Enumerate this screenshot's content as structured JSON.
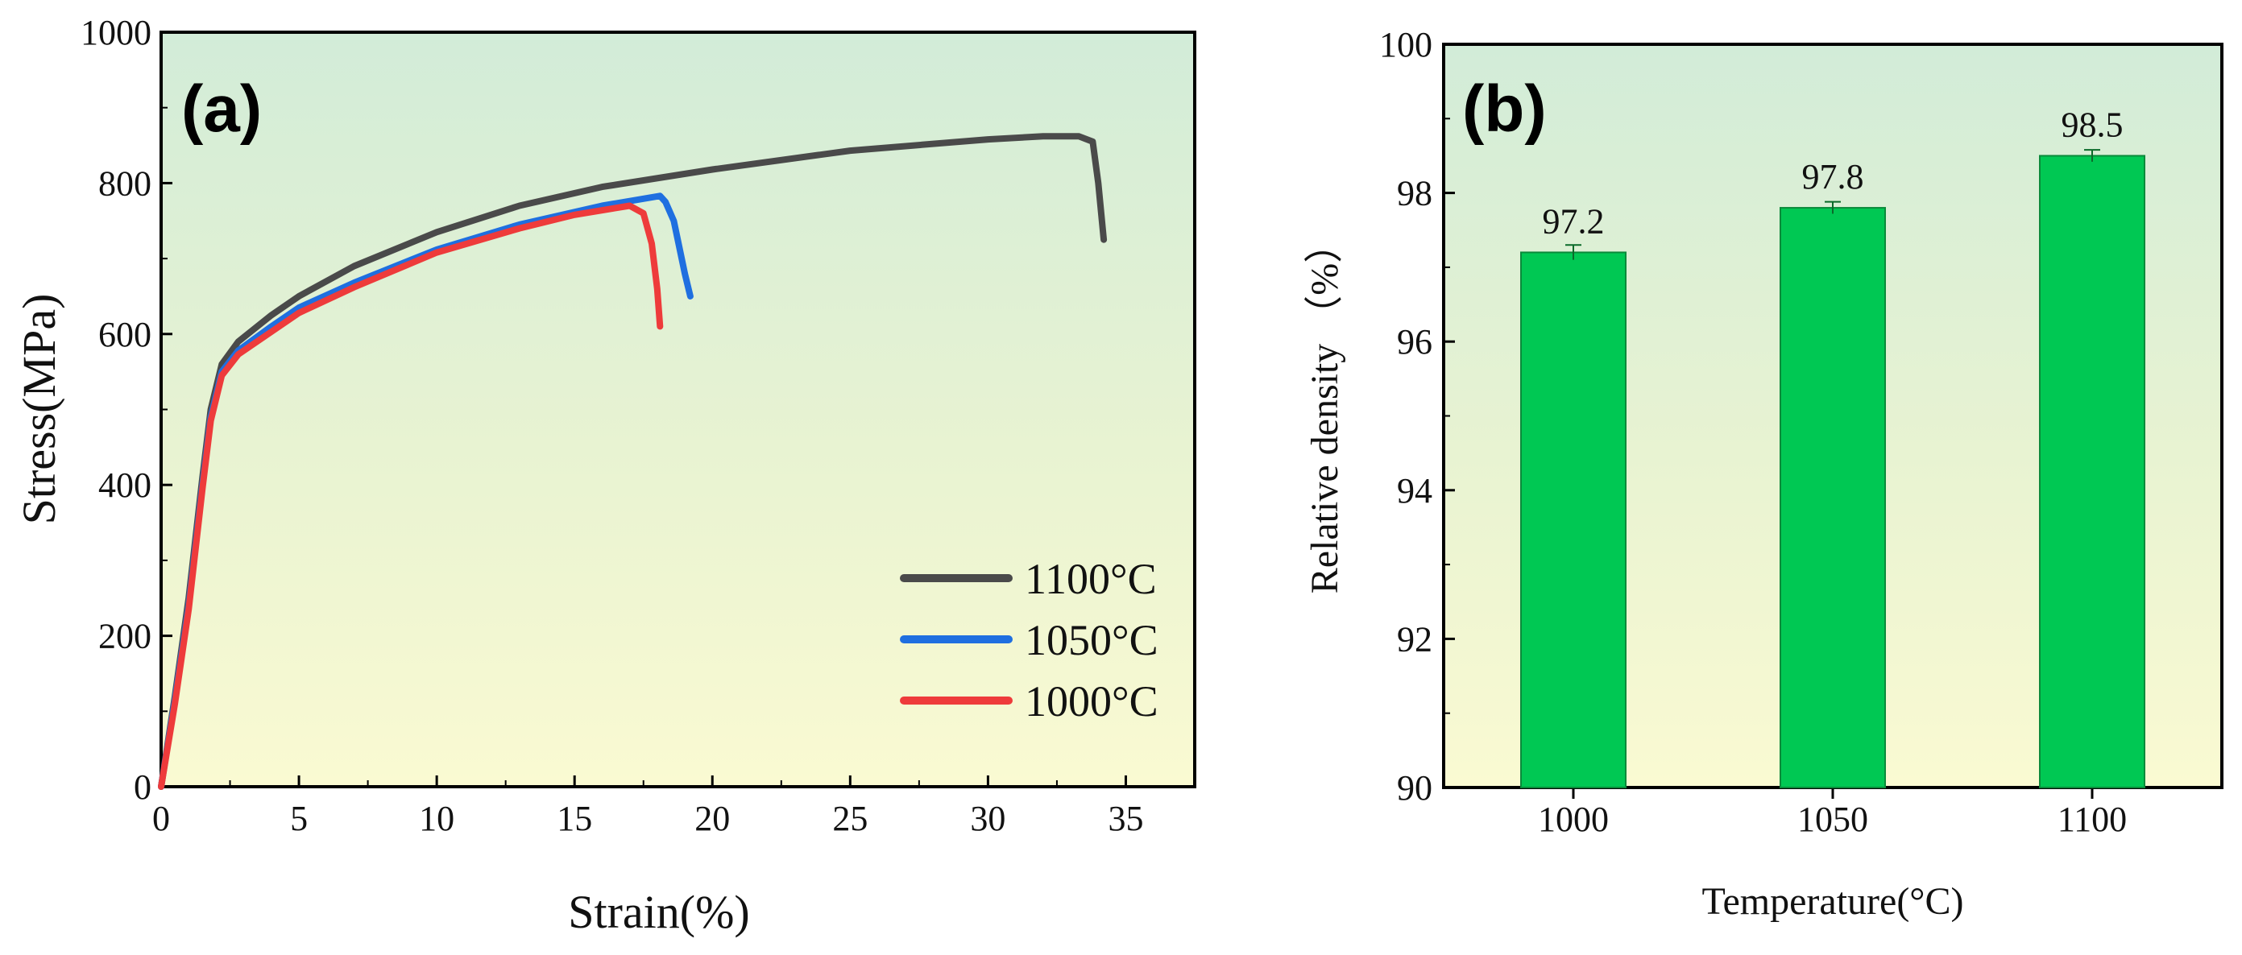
{
  "chart_data": [
    {
      "panel": "(a)",
      "type": "line",
      "xlabel": "Strain(%)",
      "ylabel": "Stress(MPa)",
      "xlim": [
        0,
        37.5
      ],
      "ylim": [
        0,
        1000
      ],
      "xticks": [
        0,
        5,
        10,
        15,
        20,
        25,
        30,
        35
      ],
      "yticks": [
        0,
        200,
        400,
        600,
        800,
        1000
      ],
      "legend_position": "lower-right",
      "series": [
        {
          "name": "1100°C",
          "color": "#4a4a4a",
          "points": [
            [
              0,
              0
            ],
            [
              0.5,
              120
            ],
            [
              1,
              250
            ],
            [
              1.5,
              410
            ],
            [
              1.8,
              500
            ],
            [
              2.2,
              560
            ],
            [
              2.8,
              590
            ],
            [
              4,
              625
            ],
            [
              5,
              650
            ],
            [
              7,
              690
            ],
            [
              10,
              735
            ],
            [
              13,
              770
            ],
            [
              16,
              795
            ],
            [
              20,
              818
            ],
            [
              25,
              843
            ],
            [
              30,
              858
            ],
            [
              32,
              862
            ],
            [
              33.3,
              862
            ],
            [
              33.8,
              855
            ],
            [
              34,
              800
            ],
            [
              34.2,
              725
            ]
          ]
        },
        {
          "name": "1050°C",
          "color": "#1f6fe0",
          "points": [
            [
              0,
              0
            ],
            [
              0.5,
              115
            ],
            [
              1,
              240
            ],
            [
              1.5,
              400
            ],
            [
              1.8,
              490
            ],
            [
              2.2,
              550
            ],
            [
              2.8,
              578
            ],
            [
              4,
              610
            ],
            [
              5,
              635
            ],
            [
              7,
              668
            ],
            [
              10,
              712
            ],
            [
              13,
              745
            ],
            [
              16,
              770
            ],
            [
              18.1,
              783
            ],
            [
              18.3,
              775
            ],
            [
              18.6,
              750
            ],
            [
              19,
              680
            ],
            [
              19.2,
              650
            ]
          ]
        },
        {
          "name": "1000°C",
          "color": "#ee3b3b",
          "points": [
            [
              0,
              0
            ],
            [
              0.5,
              110
            ],
            [
              1,
              235
            ],
            [
              1.5,
              395
            ],
            [
              1.8,
              485
            ],
            [
              2.2,
              545
            ],
            [
              2.8,
              573
            ],
            [
              4,
              603
            ],
            [
              5,
              628
            ],
            [
              7,
              662
            ],
            [
              10,
              708
            ],
            [
              13,
              740
            ],
            [
              15,
              758
            ],
            [
              17,
              770
            ],
            [
              17.5,
              760
            ],
            [
              17.8,
              720
            ],
            [
              18,
              660
            ],
            [
              18.1,
              610
            ]
          ]
        }
      ]
    },
    {
      "panel": "(b)",
      "type": "bar",
      "xlabel": "Temperature(°C)",
      "ylabel": "Relative density （%）",
      "categories": [
        "1000",
        "1050",
        "1100"
      ],
      "values": [
        97.2,
        97.8,
        98.5
      ],
      "value_labels": [
        "97.2",
        "97.8",
        "98.5"
      ],
      "error": [
        0.1,
        0.08,
        0.08
      ],
      "ylim": [
        90,
        100
      ],
      "yticks": [
        "90",
        "92",
        "94",
        "96",
        "98",
        "100"
      ],
      "bar_color": "#00c853"
    }
  ]
}
